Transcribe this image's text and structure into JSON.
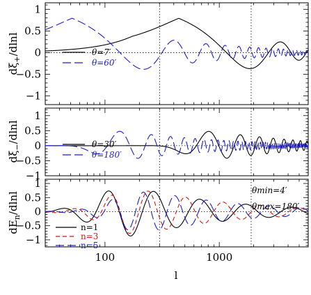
{
  "chart_data": [
    {
      "type": "line",
      "panel": "top",
      "ylabel": "dξ+/dlnl",
      "ylabel_main": "dξ",
      "ylabel_sub": "+",
      "ylabel_tail": "/dlnl",
      "xscale": "log",
      "xlim": [
        30,
        6000
      ],
      "ylim": [
        -1.2,
        1.15
      ],
      "yticks": [
        -1,
        -0.5,
        0,
        0.5,
        1
      ],
      "ytick_labels": [
        "−1",
        "−0.5",
        "0",
        "0.5",
        "1"
      ],
      "vlines": [
        300,
        1900
      ],
      "legend_position": "bottom-left",
      "series": [
        {
          "name": "θ=7′",
          "color": "#000000",
          "dash": "solid",
          "model": "xi_plus",
          "theta_arcmin": 7
        },
        {
          "name": "θ=60′",
          "color": "#1c1ccc",
          "dash": "long-dash",
          "model": "xi_plus",
          "theta_arcmin": 60
        }
      ]
    },
    {
      "type": "line",
      "panel": "middle",
      "ylabel": "dξ−/dlnl",
      "ylabel_main": "dξ",
      "ylabel_sub": "−",
      "ylabel_tail": "/dlnl",
      "xscale": "log",
      "xlim": [
        30,
        6000
      ],
      "ylim": [
        -1.0,
        1.25
      ],
      "yticks": [
        -1,
        -0.5,
        0,
        0.5,
        1
      ],
      "ytick_labels": [
        "−1",
        "−0.5",
        "0",
        "0.5",
        "1"
      ],
      "vlines": [
        300,
        1900
      ],
      "legend_position": "bottom-left",
      "series": [
        {
          "name": "θ=30′",
          "color": "#000000",
          "dash": "solid",
          "model": "xi_minus",
          "theta_arcmin": 30
        },
        {
          "name": "θ=180′",
          "color": "#1c1ccc",
          "dash": "long-dash",
          "model": "xi_minus",
          "theta_arcmin": 180
        }
      ]
    },
    {
      "type": "line",
      "panel": "bottom",
      "ylabel": "dEn/dlnl",
      "ylabel_main": "dE",
      "ylabel_sub": "n",
      "ylabel_tail": "/dlnl",
      "xlabel": "l",
      "xscale": "log",
      "xlim": [
        30,
        6000
      ],
      "xticks": [
        100,
        1000
      ],
      "xtick_labels": [
        "100",
        "1000"
      ],
      "ylim": [
        -1.25,
        1.15
      ],
      "yticks": [
        -1,
        -0.5,
        0,
        0.5,
        1
      ],
      "ytick_labels": [
        "−1",
        "−0.5",
        "0",
        "0.5",
        "1"
      ],
      "vlines": [
        300,
        1900
      ],
      "legend_position": "bottom-left",
      "annotations": [
        "θmin=4′",
        "θmax=180′"
      ],
      "series": [
        {
          "name": "n=1",
          "color": "#000000",
          "dash": "solid",
          "model": "cosebis",
          "order": 1
        },
        {
          "name": "n=3",
          "color": "#dd1111",
          "dash": "short-dash",
          "model": "cosebis",
          "order": 3
        },
        {
          "name": "n=5",
          "color": "#1c1ccc",
          "dash": "long-dash",
          "model": "cosebis",
          "order": 5
        }
      ]
    }
  ]
}
